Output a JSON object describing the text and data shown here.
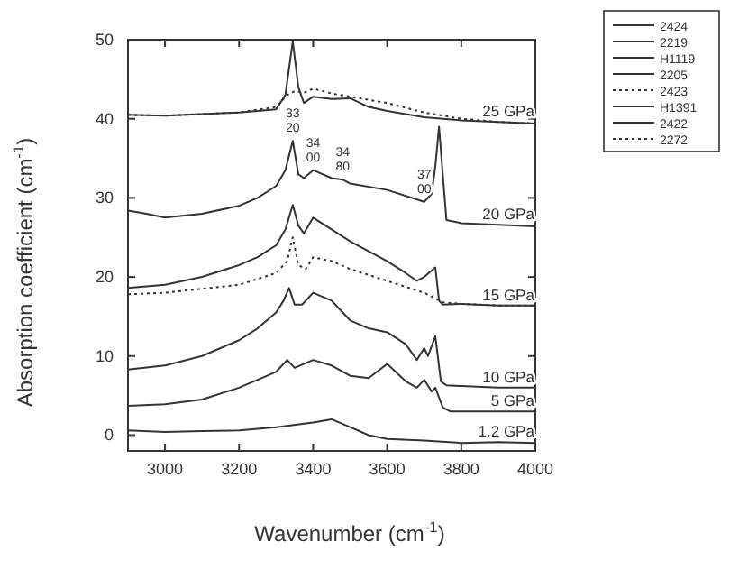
{
  "chart_data": {
    "type": "line",
    "xlabel": "Wavenumber (cm$^{-1}$)",
    "ylabel": "Absorption coefficient (cm$^{-1}$)",
    "xlim": [
      2900,
      4000
    ],
    "ylim": [
      -2,
      50
    ],
    "xticks": [
      3000,
      3200,
      3400,
      3600,
      3800,
      4000
    ],
    "yticks": [
      0,
      10,
      20,
      30,
      40,
      50
    ],
    "grid": false,
    "legend": "top right",
    "marker": "none",
    "series": [
      {
        "name": "2424",
        "color": "#333333",
        "line_style": "solid",
        "x": [
          2900,
          3000,
          3100,
          3200,
          3300,
          3325,
          3345,
          3360,
          3375,
          3400,
          3450,
          3500,
          3550,
          3600,
          3700,
          3800,
          3900,
          4000
        ],
        "values": [
          40.5,
          40.4,
          40.6,
          40.8,
          41.2,
          43,
          49.8,
          44,
          42,
          42.8,
          42.5,
          42.6,
          41.5,
          41,
          40.2,
          39.8,
          39.6,
          39.4
        ]
      },
      {
        "name": "2219",
        "color": "#333333",
        "line_style": "solid",
        "x": [
          2900,
          2950,
          3000,
          3100,
          3200,
          3250,
          3300,
          3325,
          3345,
          3360,
          3375,
          3400,
          3450,
          3480,
          3500,
          3600,
          3700,
          3720,
          3730,
          3740,
          3750,
          3760,
          3800,
          3900,
          4000
        ],
        "values": [
          28.4,
          28,
          27.5,
          28,
          29,
          30,
          31.5,
          33.5,
          37.2,
          33,
          32.5,
          33.5,
          32.5,
          32.3,
          31.8,
          31,
          29.5,
          30.5,
          34,
          39,
          33,
          27.2,
          26.8,
          26.6,
          26.4
        ]
      },
      {
        "name": "H1119",
        "color": "#333333",
        "line_style": "solid",
        "x": [
          2900,
          3000,
          3100,
          3200,
          3250,
          3300,
          3325,
          3345,
          3360,
          3375,
          3400,
          3450,
          3500,
          3600,
          3650,
          3680,
          3700,
          3720,
          3730,
          3740,
          3750,
          3800,
          3900,
          4000
        ],
        "values": [
          18.6,
          19,
          20,
          21.5,
          22.5,
          24,
          26,
          29.1,
          26.5,
          25.5,
          27.5,
          26,
          24.5,
          22,
          20.5,
          19.5,
          20,
          20.8,
          21.2,
          17,
          16.5,
          16.6,
          16.4,
          16.4
        ]
      },
      {
        "name": "2205",
        "color": "#333333",
        "line_style": "solid",
        "x": [
          2900,
          3000,
          3100,
          3200,
          3250,
          3300,
          3320,
          3335,
          3350,
          3370,
          3400,
          3450,
          3500,
          3550,
          3600,
          3650,
          3680,
          3700,
          3710,
          3730,
          3745,
          3760,
          3800,
          3900,
          4000
        ],
        "values": [
          8.3,
          8.8,
          10,
          12,
          13.5,
          15.5,
          17,
          18.6,
          16.5,
          16.5,
          18,
          17,
          14.5,
          13.5,
          13,
          11.5,
          9.5,
          11,
          10,
          12.5,
          6.8,
          6.3,
          6.2,
          6,
          6
        ]
      },
      {
        "name": "2423",
        "color": "#333333",
        "line_style": "dotted",
        "x": [
          2900,
          3000,
          3100,
          3200,
          3300,
          3330,
          3350,
          3375,
          3400,
          3450,
          3500,
          3600,
          3700,
          3800,
          3900,
          4000
        ],
        "values": [
          40.5,
          40.4,
          40.6,
          40.8,
          41.5,
          43,
          43.5,
          43.3,
          43.8,
          43.2,
          42.8,
          42,
          40.8,
          40,
          39.6,
          39.4
        ]
      },
      {
        "name": "H1391",
        "color": "#333333",
        "line_style": "solid",
        "x": [
          2900,
          3000,
          3100,
          3200,
          3300,
          3330,
          3350,
          3400,
          3450,
          3500,
          3550,
          3600,
          3650,
          3680,
          3700,
          3720,
          3730,
          3750,
          3770,
          3800,
          3900,
          4000
        ],
        "values": [
          3.7,
          3.9,
          4.5,
          6,
          8,
          9.5,
          8.5,
          9.5,
          8.8,
          7.5,
          7.2,
          9,
          6.8,
          6,
          7,
          5.5,
          6,
          3.5,
          3,
          3,
          3,
          3
        ]
      },
      {
        "name": "2422",
        "color": "#333333",
        "line_style": "solid",
        "x": [
          2900,
          3000,
          3100,
          3200,
          3300,
          3400,
          3450,
          3500,
          3550,
          3600,
          3700,
          3800,
          3900,
          4000
        ],
        "values": [
          0.6,
          0.4,
          0.5,
          0.6,
          1,
          1.6,
          2,
          1,
          0,
          -0.5,
          -0.7,
          -1,
          -0.9,
          -1
        ]
      },
      {
        "name": "2272",
        "color": "#333333",
        "line_style": "dotted",
        "x": [
          2900,
          3000,
          3100,
          3200,
          3300,
          3330,
          3345,
          3360,
          3380,
          3400,
          3450,
          3500,
          3600,
          3700,
          3750,
          3800,
          3900,
          4000
        ],
        "values": [
          17.8,
          18,
          18.5,
          19,
          20.5,
          22,
          25,
          21.5,
          21,
          22.5,
          22,
          21,
          19.5,
          18,
          16.8,
          16.6,
          16.4,
          16.4
        ]
      }
    ],
    "annotations": [
      {
        "text": "25 GPa",
        "x": 3900,
        "y": 39.6
      },
      {
        "text": "20 GPa",
        "x": 3900,
        "y": 26.6
      },
      {
        "text": "15 GPa",
        "x": 3900,
        "y": 16.4
      },
      {
        "text": "10 GPa",
        "x": 3900,
        "y": 6
      },
      {
        "text": "5 GPa",
        "x": 3900,
        "y": 3
      },
      {
        "text": "1.2 GPa",
        "x": 3900,
        "y": -0.9
      },
      {
        "text": "33\n20",
        "x": 3345,
        "y": 37.2
      },
      {
        "text": "34\n00",
        "x": 3400,
        "y": 33.5
      },
      {
        "text": "34\n80",
        "x": 3480,
        "y": 32.3
      },
      {
        "text": "37\n00",
        "x": 3700,
        "y": 29.5
      }
    ]
  }
}
